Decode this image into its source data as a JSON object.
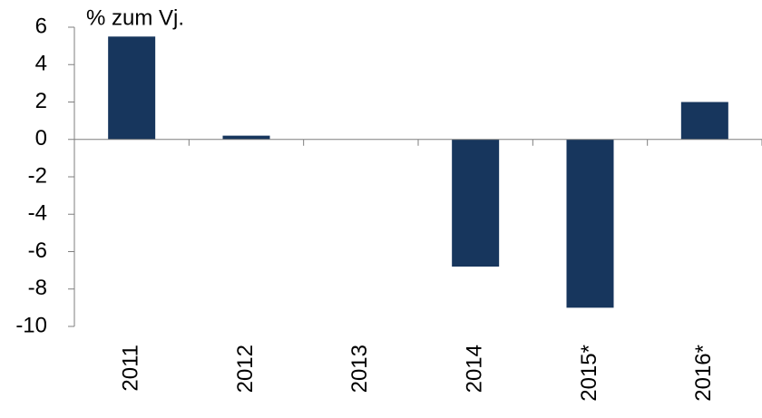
{
  "chart_data": {
    "type": "bar",
    "y_label": "% zum Vj.",
    "categories": [
      "2011",
      "2012",
      "2013",
      "2014",
      "2015*",
      "2016*"
    ],
    "values": [
      5.5,
      0.2,
      0,
      -6.8,
      -9,
      2
    ],
    "color": "#17365d",
    "ylim": [
      -10,
      6
    ],
    "yticks": [
      -10,
      -8,
      -6,
      -4,
      -2,
      0,
      2,
      4,
      6
    ],
    "grid": false
  }
}
